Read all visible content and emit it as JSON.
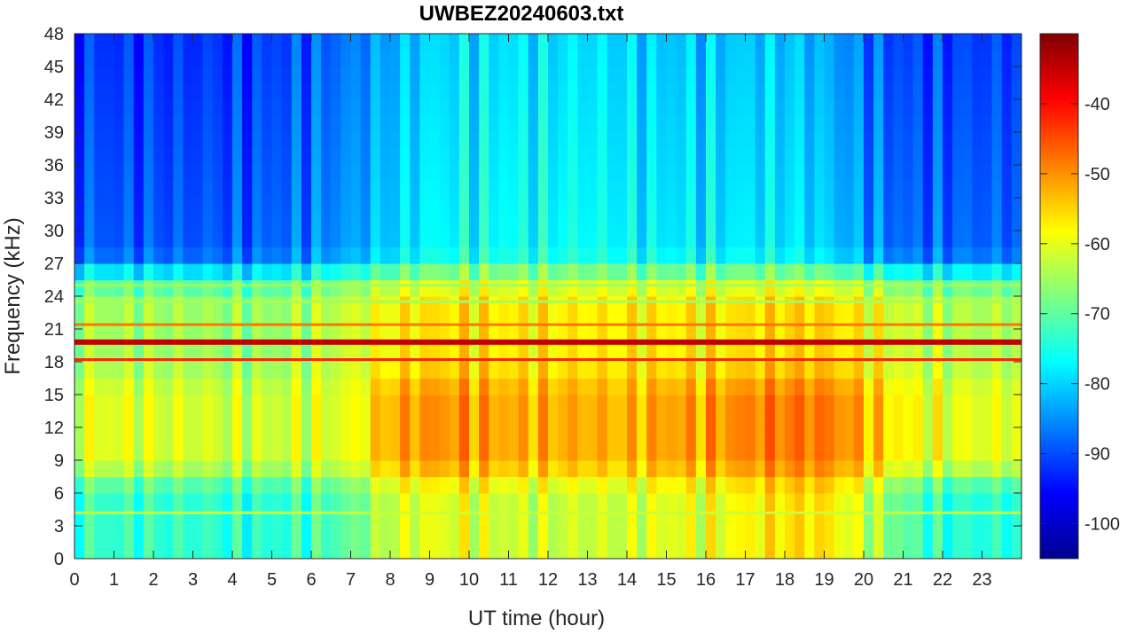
{
  "chart_data": {
    "type": "heatmap",
    "title": "UWBEZ20240603.txt",
    "xlabel": "UT time (hour)",
    "ylabel": "Frequency (kHz)",
    "xlim": [
      0,
      24
    ],
    "ylim": [
      0,
      48
    ],
    "x_ticks": [
      0,
      1,
      2,
      3,
      4,
      5,
      6,
      7,
      8,
      9,
      10,
      11,
      12,
      13,
      14,
      15,
      16,
      17,
      18,
      19,
      20,
      21,
      22,
      23
    ],
    "y_ticks": [
      0,
      3,
      6,
      9,
      12,
      15,
      18,
      21,
      24,
      27,
      30,
      33,
      36,
      39,
      42,
      45,
      48
    ],
    "colorbar": {
      "colormap": "jet",
      "range": [
        -105,
        -30
      ],
      "ticks": [
        -100,
        -90,
        -80,
        -70,
        -60,
        -50,
        -40
      ]
    },
    "broadband_level_by_hour": {
      "hours": [
        0,
        1,
        2,
        3,
        4,
        5,
        6,
        7,
        8,
        9,
        10,
        11,
        12,
        13,
        14,
        15,
        16,
        17,
        18,
        19,
        20,
        21,
        22,
        23
      ],
      "low_freq_band_0_8kHz_dB": [
        -72,
        -73,
        -73,
        -73,
        -74,
        -74,
        -72,
        -70,
        -62,
        -60,
        -60,
        -62,
        -62,
        -62,
        -62,
        -60,
        -60,
        -58,
        -56,
        -56,
        -62,
        -70,
        -74,
        -74
      ],
      "mid_band_8_16kHz_dB": [
        -60,
        -60,
        -61,
        -61,
        -62,
        -62,
        -61,
        -60,
        -52,
        -50,
        -50,
        -52,
        -52,
        -52,
        -53,
        -51,
        -51,
        -49,
        -48,
        -48,
        -52,
        -58,
        -60,
        -60
      ],
      "upper_band_16_24kHz_dB": [
        -64,
        -65,
        -65,
        -65,
        -66,
        -66,
        -64,
        -62,
        -58,
        -56,
        -56,
        -57,
        -57,
        -57,
        -57,
        -57,
        -57,
        -56,
        -55,
        -55,
        -58,
        -62,
        -64,
        -64
      ],
      "high_band_24_48kHz_dB": [
        -88,
        -89,
        -89,
        -89,
        -89,
        -88,
        -86,
        -84,
        -80,
        -77,
        -76,
        -76,
        -76,
        -76,
        -77,
        -78,
        -78,
        -78,
        -78,
        -80,
        -84,
        -88,
        -88,
        -88
      ]
    },
    "narrowband_lines": [
      {
        "freq_khz": 19.8,
        "level_db": -35
      },
      {
        "freq_khz": 18.2,
        "level_db": -42
      },
      {
        "freq_khz": 21.4,
        "level_db": -48
      },
      {
        "freq_khz": 25.0,
        "level_db": -65
      },
      {
        "freq_khz": 23.5,
        "level_db": -65
      },
      {
        "freq_khz": 4.2,
        "level_db": -62
      }
    ]
  }
}
